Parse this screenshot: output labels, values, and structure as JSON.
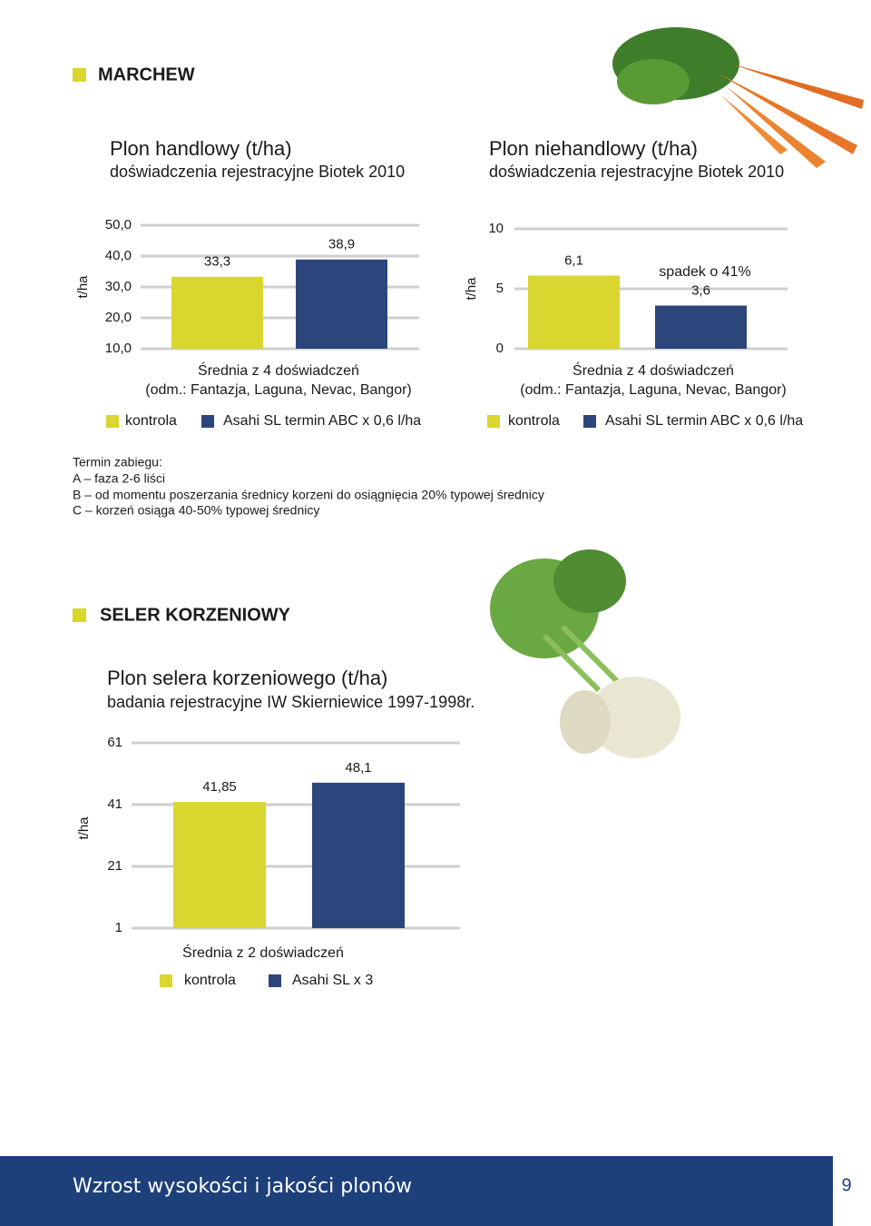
{
  "heading": "MARCHEW",
  "heading2": "SELER KORZENIOWY",
  "notes": [
    "Termin zabiegu:",
    "A – faza 2-6 liści",
    "B – od momentu poszerzania średnicy korzeni do osiągnięcia 20% typowej średnicy",
    "C – korzeń osiąga  40-50% typowej średnicy"
  ],
  "footer": {
    "text": "Wzrost wysokości i jakości plonów",
    "page": "9"
  },
  "chart_data": [
    {
      "type": "bar",
      "title": "Plon handlowy (t/ha)",
      "subtitle": "doświadczenia rejestracyjne Biotek 2010",
      "ylabel": "t/ha",
      "categories": [
        "Średnia z 4 doświadczeń"
      ],
      "note": "(odm.: Fantazja, Laguna, Nevac, Bangor)",
      "series": [
        {
          "name": "kontrola",
          "color": "#d8d62f",
          "values": [
            33.3
          ],
          "value_labels": [
            "33,3"
          ]
        },
        {
          "name": "Asahi SL termin ABC x 0,6 l/ha",
          "color": "#2c467b",
          "values": [
            38.9
          ],
          "value_labels": [
            "38,9"
          ]
        }
      ],
      "ylim": [
        10,
        50
      ],
      "yticks": [
        {
          "value": 50,
          "label": "50,0"
        },
        {
          "value": 40,
          "label": "40,0"
        },
        {
          "value": 30,
          "label": "30,0"
        },
        {
          "value": 20,
          "label": "20,0"
        },
        {
          "value": 10,
          "label": "10,0"
        }
      ],
      "grid": true
    },
    {
      "type": "bar",
      "title": "Plon niehandlowy (t/ha)",
      "subtitle": "doświadczenia rejestracyjne Biotek 2010",
      "ylabel": "t/ha",
      "categories": [
        "Średnia z 4 doświadczeń"
      ],
      "note": "(odm.: Fantazja, Laguna, Nevac, Bangor)",
      "annotation": "spadek o 41%",
      "series": [
        {
          "name": "kontrola",
          "color": "#d8d62f",
          "values": [
            6.1
          ],
          "value_labels": [
            "6,1"
          ]
        },
        {
          "name": "Asahi SL termin ABC x 0,6 l/ha",
          "color": "#2c467b",
          "values": [
            3.6
          ],
          "value_labels": [
            "3,6"
          ]
        }
      ],
      "ylim": [
        0,
        10
      ],
      "yticks": [
        10,
        5,
        0
      ],
      "grid": true
    },
    {
      "type": "bar",
      "title": "Plon selera korzeniowego (t/ha)",
      "subtitle": "badania rejestracyjne IW Skierniewice 1997-1998r.",
      "ylabel": "t/ha",
      "categories": [
        "Średnia z 2 doświadczeń"
      ],
      "series": [
        {
          "name": "kontrola",
          "color": "#d8d62f",
          "values": [
            41.85
          ],
          "value_labels": [
            "41,85"
          ]
        },
        {
          "name": "Asahi SL x 3",
          "color": "#2c467b",
          "values": [
            48.1
          ],
          "value_labels": [
            "48,1"
          ]
        }
      ],
      "ylim": [
        1,
        61
      ],
      "yticks": [
        61,
        41,
        21,
        1
      ],
      "grid": true
    }
  ]
}
